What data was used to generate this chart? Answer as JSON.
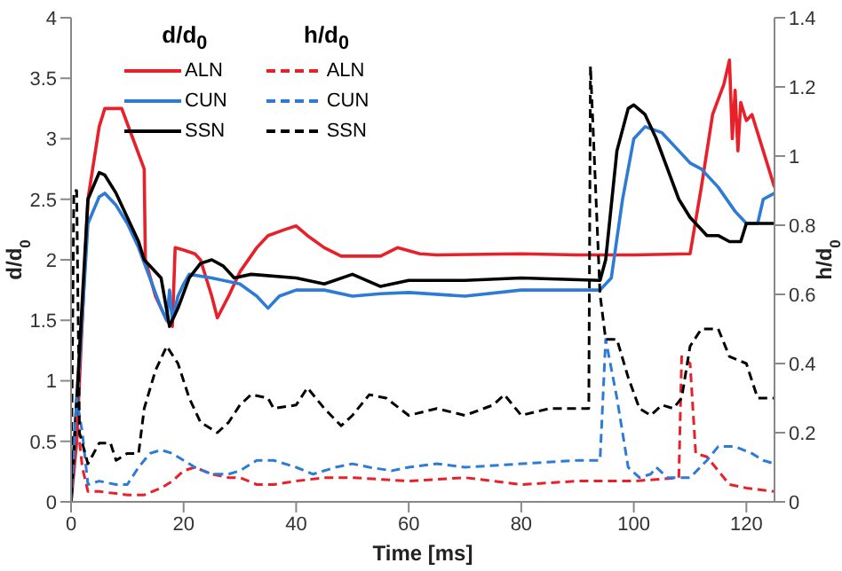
{
  "chart_data": {
    "type": "line",
    "xlabel": "Time [ms]",
    "ylabel": "d/d$_{0}$",
    "y2label": "h/d$_{0}$",
    "xlim": [
      0,
      125
    ],
    "xticks": [
      0,
      20,
      40,
      60,
      80,
      100,
      120
    ],
    "ylim": [
      0,
      4
    ],
    "yticks": [
      0,
      0.5,
      1,
      1.5,
      2,
      2.5,
      3,
      3.5,
      4
    ],
    "y2lim": [
      0,
      1.4
    ],
    "y2ticks": [
      0,
      0.2,
      0.4,
      0.6,
      0.8,
      1,
      1.2,
      1.4
    ],
    "legend": "top left",
    "marker": "none",
    "annotations": [
      "d/d$_{0}$",
      "h/d$_{0}$"
    ],
    "series": [
      {
        "name": "ALN",
        "color": "#e8202a",
        "line_style": "solid",
        "axis": "y",
        "x": [
          0,
          1,
          3,
          5,
          6,
          9,
          11,
          13,
          13.2,
          15,
          17,
          18,
          18.5,
          20,
          22,
          23,
          25,
          26,
          28,
          30,
          33,
          35,
          38,
          40,
          42,
          45,
          48,
          55,
          58,
          62,
          65,
          80,
          90,
          100,
          110,
          112,
          114,
          116,
          117,
          117.5,
          118,
          118.5,
          119,
          120,
          121,
          123,
          125
        ],
        "values": [
          0,
          0.5,
          2.5,
          3.1,
          3.25,
          3.25,
          3.0,
          2.75,
          2.0,
          1.7,
          1.5,
          1.45,
          2.1,
          2.08,
          2.05,
          2.0,
          1.7,
          1.52,
          1.7,
          1.9,
          2.1,
          2.2,
          2.25,
          2.28,
          2.2,
          2.1,
          2.03,
          2.03,
          2.1,
          2.05,
          2.04,
          2.05,
          2.04,
          2.04,
          2.05,
          2.6,
          3.2,
          3.45,
          3.65,
          3.0,
          3.4,
          2.9,
          3.3,
          3.15,
          3.2,
          2.9,
          2.6
        ]
      },
      {
        "name": "CUN",
        "color": "#2e7bd6",
        "line_style": "solid",
        "axis": "y",
        "x": [
          0,
          3,
          5,
          6,
          8,
          10,
          12,
          14,
          16,
          17,
          17.5,
          18,
          19,
          20,
          21,
          25,
          28,
          30,
          33,
          35,
          37,
          40,
          45,
          50,
          55,
          60,
          70,
          80,
          90,
          94,
          96,
          98,
          100,
          102,
          105,
          108,
          110,
          112,
          115,
          118,
          120,
          122,
          123,
          125
        ],
        "values": [
          0,
          2.3,
          2.52,
          2.55,
          2.45,
          2.3,
          2.1,
          1.85,
          1.6,
          1.5,
          1.75,
          1.5,
          1.7,
          1.8,
          1.88,
          1.85,
          1.82,
          1.8,
          1.7,
          1.6,
          1.7,
          1.75,
          1.75,
          1.7,
          1.72,
          1.73,
          1.7,
          1.75,
          1.75,
          1.75,
          1.85,
          2.5,
          3.0,
          3.1,
          3.05,
          2.9,
          2.8,
          2.75,
          2.6,
          2.4,
          2.3,
          2.3,
          2.5,
          2.55
        ]
      },
      {
        "name": "SSN",
        "color": "#000000",
        "line_style": "solid",
        "axis": "y",
        "x": [
          0,
          3,
          5,
          6,
          8,
          10,
          12,
          13,
          14,
          16,
          17.5,
          19,
          21,
          23,
          25,
          27,
          29,
          32,
          40,
          45,
          50,
          55,
          60,
          70,
          80,
          94,
          95,
          97,
          99,
          100,
          102,
          104,
          106,
          108,
          110,
          113,
          115,
          117,
          119,
          120,
          125
        ],
        "values": [
          0,
          2.5,
          2.72,
          2.7,
          2.55,
          2.35,
          2.15,
          2.0,
          1.95,
          1.85,
          1.45,
          1.6,
          1.85,
          1.97,
          2.0,
          1.95,
          1.85,
          1.88,
          1.85,
          1.8,
          1.88,
          1.78,
          1.83,
          1.83,
          1.85,
          1.83,
          2.0,
          2.9,
          3.25,
          3.28,
          3.2,
          3.0,
          2.75,
          2.5,
          2.35,
          2.2,
          2.2,
          2.15,
          2.15,
          2.3,
          2.3
        ]
      },
      {
        "name": "ALN",
        "color": "#e8202a",
        "line_style": "dashed",
        "axis": "y2",
        "x": [
          0,
          1,
          2,
          3,
          5,
          10,
          13,
          16,
          18,
          20,
          22,
          25,
          28,
          30,
          33,
          36,
          40,
          45,
          50,
          60,
          70,
          80,
          90,
          100,
          108,
          108.5,
          110,
          111,
          113,
          115,
          117,
          120,
          125
        ],
        "values": [
          0,
          0.25,
          0.1,
          0.03,
          0.03,
          0.02,
          0.02,
          0.04,
          0.06,
          0.09,
          0.1,
          0.08,
          0.07,
          0.07,
          0.05,
          0.05,
          0.06,
          0.07,
          0.07,
          0.06,
          0.07,
          0.05,
          0.06,
          0.06,
          0.07,
          0.42,
          0.4,
          0.14,
          0.13,
          0.09,
          0.05,
          0.04,
          0.03
        ]
      },
      {
        "name": "CUN",
        "color": "#2e7bd6",
        "line_style": "dashed",
        "axis": "y2",
        "x": [
          0,
          1,
          2,
          3,
          5,
          8,
          10,
          12,
          14,
          16,
          18,
          20,
          22,
          25,
          28,
          30,
          33,
          36,
          40,
          43,
          47,
          50,
          53,
          57,
          60,
          65,
          70,
          80,
          90,
          94,
          95,
          97,
          99,
          101,
          103,
          104,
          106,
          110,
          113,
          115,
          118,
          121,
          123,
          125
        ],
        "values": [
          0,
          0.3,
          0.2,
          0.05,
          0.06,
          0.05,
          0.05,
          0.1,
          0.14,
          0.15,
          0.14,
          0.12,
          0.1,
          0.08,
          0.08,
          0.09,
          0.12,
          0.12,
          0.1,
          0.08,
          0.1,
          0.11,
          0.1,
          0.09,
          0.1,
          0.11,
          0.1,
          0.11,
          0.12,
          0.12,
          0.47,
          0.3,
          0.1,
          0.07,
          0.08,
          0.1,
          0.07,
          0.07,
          0.12,
          0.16,
          0.16,
          0.14,
          0.12,
          0.11
        ]
      },
      {
        "name": "SSN",
        "color": "#000000",
        "line_style": "dashed",
        "axis": "y2",
        "x": [
          0,
          0.5,
          1,
          1.5,
          3,
          5,
          7,
          8,
          10,
          12,
          13,
          15,
          17,
          19,
          21,
          23,
          26,
          28,
          30,
          32,
          35,
          36,
          40,
          42,
          45,
          48,
          50,
          53,
          56,
          60,
          65,
          70,
          75,
          77,
          80,
          85,
          90,
          92,
          92.3,
          94,
          95,
          97,
          99,
          101,
          103,
          105,
          107,
          108.5,
          110,
          112,
          115,
          117,
          120,
          122,
          125
        ],
        "values": [
          0,
          0.9,
          0.9,
          0.2,
          0.11,
          0.17,
          0.17,
          0.12,
          0.14,
          0.14,
          0.27,
          0.38,
          0.45,
          0.4,
          0.3,
          0.23,
          0.2,
          0.23,
          0.28,
          0.31,
          0.3,
          0.27,
          0.28,
          0.33,
          0.27,
          0.22,
          0.25,
          0.31,
          0.3,
          0.25,
          0.27,
          0.25,
          0.28,
          0.31,
          0.25,
          0.27,
          0.27,
          0.27,
          1.26,
          0.6,
          0.47,
          0.47,
          0.36,
          0.27,
          0.25,
          0.28,
          0.27,
          0.3,
          0.45,
          0.5,
          0.5,
          0.42,
          0.4,
          0.3,
          0.3
        ]
      }
    ]
  }
}
